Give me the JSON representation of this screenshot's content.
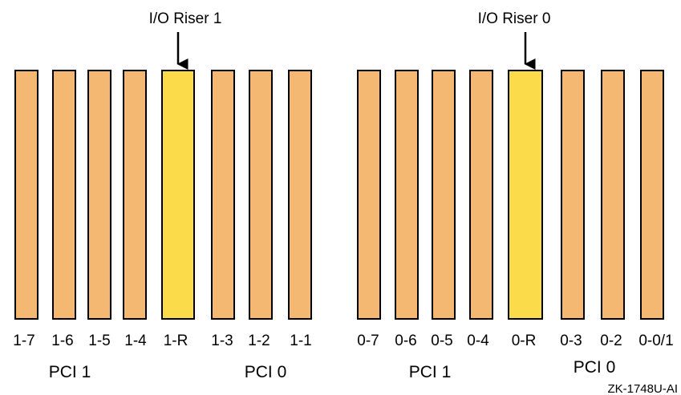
{
  "colors": {
    "slot_fill": "#F5B872",
    "riser_fill": "#FBDB4A",
    "outline": "#000000",
    "text": "#000000"
  },
  "risers": [
    {
      "title": "I/O Riser 1",
      "slots": [
        {
          "label": "1-7",
          "type": "pci"
        },
        {
          "label": "1-6",
          "type": "pci"
        },
        {
          "label": "1-5",
          "type": "pci"
        },
        {
          "label": "1-4",
          "type": "pci"
        },
        {
          "label": "1-R",
          "type": "riser"
        },
        {
          "label": "1-3",
          "type": "pci"
        },
        {
          "label": "1-2",
          "type": "pci"
        },
        {
          "label": "1-1",
          "type": "pci"
        }
      ],
      "bus_labels": [
        "PCI 1",
        "PCI 0"
      ]
    },
    {
      "title": "I/O Riser 0",
      "slots": [
        {
          "label": "0-7",
          "type": "pci"
        },
        {
          "label": "0-6",
          "type": "pci"
        },
        {
          "label": "0-5",
          "type": "pci"
        },
        {
          "label": "0-4",
          "type": "pci"
        },
        {
          "label": "0-R",
          "type": "riser"
        },
        {
          "label": "0-3",
          "type": "pci"
        },
        {
          "label": "0-2",
          "type": "pci"
        },
        {
          "label": "0-0/1",
          "type": "pci"
        }
      ],
      "bus_labels": [
        "PCI 1",
        "PCI 0"
      ]
    }
  ],
  "figure_id": "ZK-1748U-AI"
}
